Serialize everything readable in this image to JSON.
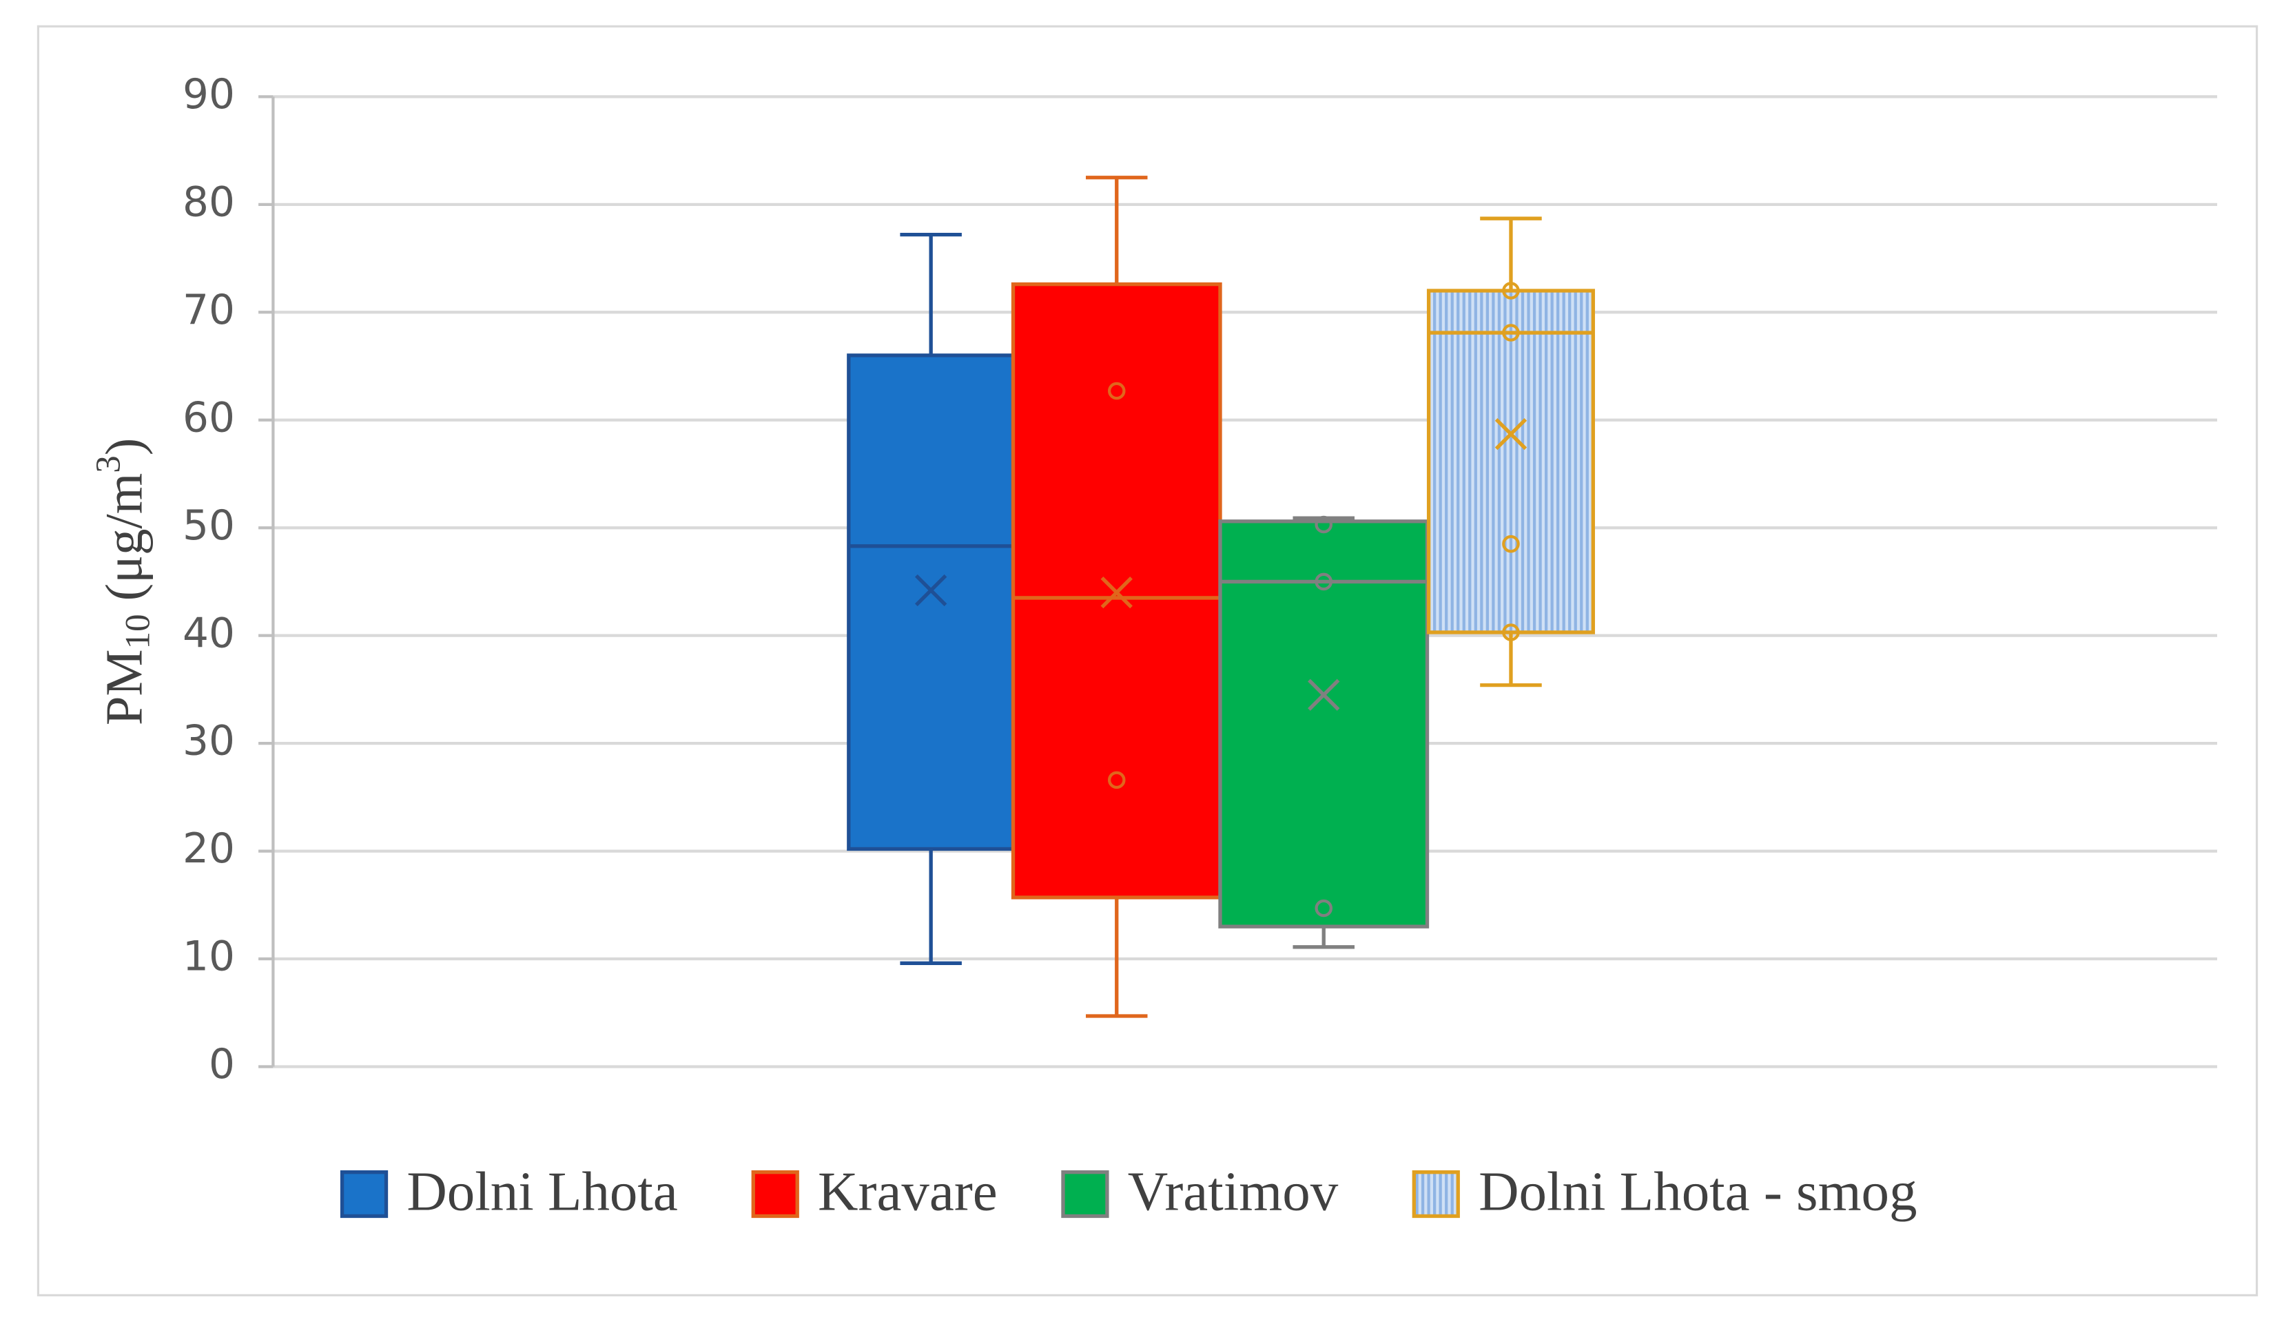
{
  "chart_data": {
    "type": "box",
    "y_label": {
      "base": "PM",
      "sub": "10",
      "mid": " (μg/m",
      "sup": "3",
      "end": ")"
    },
    "ylim": [
      0,
      90
    ],
    "yticks": [
      0,
      10,
      20,
      30,
      40,
      50,
      60,
      70,
      80,
      90
    ],
    "grid": true,
    "legend": "bottom",
    "series": [
      {
        "name": "Dolni Lhota",
        "color": "#1a73c9",
        "edge": "#1f5096",
        "min": 9.6,
        "q1": 20.2,
        "median": 48.3,
        "q3": 66,
        "max": 77.2,
        "mean": 44.2,
        "points": []
      },
      {
        "name": "Kravare",
        "color": "#ff0000",
        "edge": "#e0661c",
        "min": 4.7,
        "q1": 15.7,
        "median": 43.5,
        "q3": 72.6,
        "max": 82.5,
        "mean": 44,
        "points": [
          62.7,
          26.6
        ]
      },
      {
        "name": "Vratimov",
        "color": "#00b050",
        "edge": "#808080",
        "min": 11.1,
        "q1": 13,
        "median": 45,
        "q3": 50.6,
        "max": 50.9,
        "mean": 34.5,
        "points": [
          50.3,
          45,
          14.7
        ]
      },
      {
        "name": "Dolni Lhota - smog",
        "color": "#a9c8ee",
        "edge": "#e0a020",
        "pattern": "vertical-stripes",
        "min": 35.4,
        "q1": 40.3,
        "median": 68.1,
        "q3": 72,
        "max": 78.7,
        "mean": 58.7,
        "points": [
          72,
          68.1,
          48.5,
          40.3
        ]
      }
    ]
  }
}
